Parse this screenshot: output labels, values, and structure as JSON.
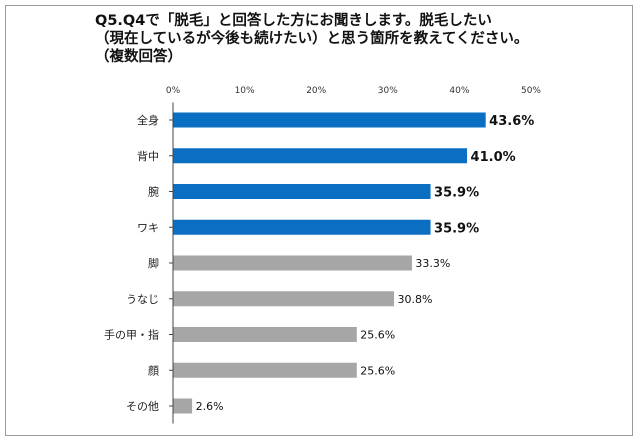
{
  "chart_data": {
    "type": "bar",
    "orientation": "horizontal",
    "title_lines": [
      "Q5.Q4で「脱毛」と回答した方にお聞きします。脱毛したい",
      "（現在しているが今後も続けたい）と思う箇所を教えてください。",
      "（複数回答）"
    ],
    "categories": [
      "全身",
      "背中",
      "腕",
      "ワキ",
      "脚",
      "うなじ",
      "手の甲・指",
      "顔",
      "その他"
    ],
    "values": [
      43.6,
      41.0,
      35.9,
      35.9,
      33.3,
      30.8,
      25.6,
      25.6,
      2.6
    ],
    "value_labels": [
      "43.6%",
      "41.0%",
      "35.9%",
      "35.9%",
      "33.3%",
      "30.8%",
      "25.6%",
      "25.6%",
      "2.6%"
    ],
    "highlighted": [
      true,
      true,
      true,
      true,
      false,
      false,
      false,
      false,
      false
    ],
    "ticks": [
      0,
      10,
      20,
      30,
      40,
      50
    ],
    "tick_labels": [
      "0%",
      "10%",
      "20%",
      "30%",
      "40%",
      "50%"
    ],
    "xlim": [
      0,
      50
    ],
    "grid": false,
    "colors": {
      "highlight": "#0a6fc2",
      "normal": "#a6a6a6",
      "axis": "#444444"
    }
  }
}
